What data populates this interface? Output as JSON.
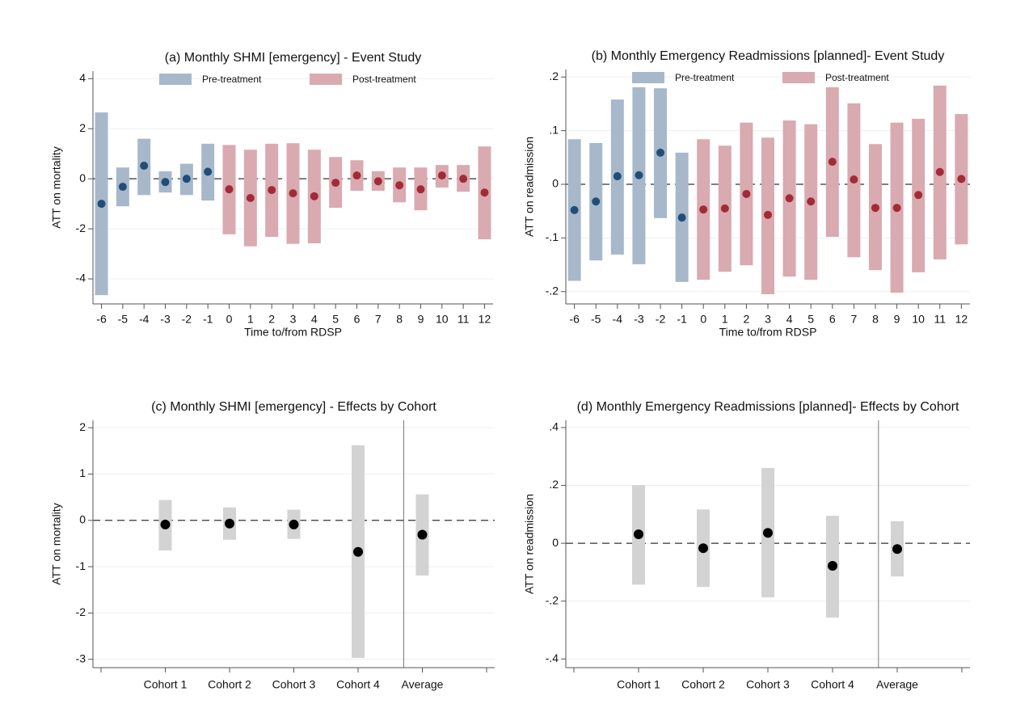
{
  "chart_data": [
    {
      "type": "errorbar",
      "title": "(a) Monthly SHMI [emergency] - Event Study",
      "xlabel": "Time to/from RDSP",
      "ylabel": "ATT on mortality",
      "xlim": [
        -6.4,
        12.4
      ],
      "xticks": [
        -6,
        -5,
        -4,
        -3,
        -2,
        -1,
        0,
        1,
        2,
        3,
        4,
        5,
        6,
        7,
        8,
        9,
        10,
        11,
        12
      ],
      "ylim": [
        -5,
        4.3
      ],
      "yticks": [
        -4,
        -2,
        0,
        2,
        4
      ],
      "grid": true,
      "reference_line": 0,
      "legend": "top",
      "series": [
        {
          "name": "Pre-treatment",
          "color": "#1f4e79",
          "band_color": "#a7b8ca",
          "x": [
            -6,
            -5,
            -4,
            -3,
            -2,
            -1
          ],
          "values": [
            -1.0,
            -0.32,
            0.52,
            -0.13,
            0,
            0.28
          ],
          "lower": [
            -4.65,
            -1.1,
            -0.65,
            -0.55,
            -0.65,
            -0.87
          ],
          "upper": [
            2.65,
            0.45,
            1.6,
            0.3,
            0.6,
            1.4
          ]
        },
        {
          "name": "Post-treatment",
          "color": "#a12b36",
          "band_color": "#d9aab0",
          "x": [
            0,
            1,
            2,
            3,
            4,
            5,
            6,
            7,
            8,
            9,
            10,
            11,
            12
          ],
          "values": [
            -0.42,
            -0.77,
            -0.45,
            -0.58,
            -0.7,
            -0.16,
            0.13,
            -0.1,
            -0.26,
            -0.42,
            0.13,
            0,
            -0.55
          ],
          "lower": [
            -2.22,
            -2.7,
            -2.32,
            -2.6,
            -2.58,
            -1.16,
            -0.48,
            -0.48,
            -0.94,
            -1.26,
            -0.35,
            -0.52,
            -2.42
          ],
          "upper": [
            1.35,
            1.16,
            1.4,
            1.42,
            1.16,
            0.87,
            0.74,
            0.3,
            0.45,
            0.45,
            0.55,
            0.55,
            1.29
          ]
        }
      ]
    },
    {
      "type": "errorbar",
      "title": "(b) Monthly Emergency Readmissions [planned]- Event Study",
      "xlabel": "Time to/from RDSP",
      "ylabel": "ATT on readmission",
      "xlim": [
        -6.4,
        12.4
      ],
      "xticks": [
        -6,
        -5,
        -4,
        -3,
        -2,
        -1,
        0,
        1,
        2,
        3,
        4,
        5,
        6,
        7,
        8,
        9,
        10,
        11,
        12
      ],
      "ylim": [
        -0.223,
        0.214
      ],
      "yticks": [
        {
          "value": -0.2,
          "label": "-.2"
        },
        {
          "value": -0.1,
          "label": "-.1"
        },
        0,
        {
          "value": 0.1,
          "label": ".1"
        },
        {
          "value": 0.2,
          "label": ".2"
        }
      ],
      "grid": true,
      "reference_line": 0,
      "legend": "top",
      "series": [
        {
          "name": "Pre-treatment",
          "color": "#1f4e79",
          "band_color": "#a7b8ca",
          "x": [
            -6,
            -5,
            -4,
            -3,
            -2,
            -1
          ],
          "values": [
            -0.048,
            -0.032,
            0.015,
            0.017,
            0.059,
            -0.062
          ],
          "lower": [
            -0.18,
            -0.142,
            -0.131,
            -0.149,
            -0.063,
            -0.182
          ],
          "upper": [
            0.084,
            0.077,
            0.158,
            0.181,
            0.179,
            0.059
          ]
        },
        {
          "name": "Post-treatment",
          "color": "#a12b36",
          "band_color": "#d9aab0",
          "x": [
            0,
            1,
            2,
            3,
            4,
            5,
            6,
            7,
            8,
            9,
            10,
            11,
            12
          ],
          "values": [
            -0.047,
            -0.045,
            -0.018,
            -0.057,
            -0.026,
            -0.032,
            0.042,
            0.009,
            -0.044,
            -0.044,
            -0.02,
            0.023,
            0.01
          ],
          "lower": [
            -0.178,
            -0.163,
            -0.151,
            -0.205,
            -0.172,
            -0.178,
            -0.098,
            -0.136,
            -0.16,
            -0.202,
            -0.164,
            -0.14,
            -0.112
          ],
          "upper": [
            0.084,
            0.072,
            0.115,
            0.087,
            0.119,
            0.112,
            0.181,
            0.151,
            0.075,
            0.115,
            0.122,
            0.184,
            0.131
          ]
        }
      ]
    },
    {
      "type": "errorbar",
      "title": "(c) Monthly SHMI [emergency] - Effects by Cohort",
      "ylabel": "ATT on mortality",
      "categories": [
        null,
        "Cohort 1",
        "Cohort 2",
        "Cohort 3",
        "Cohort 4",
        "Average",
        null
      ],
      "ylim": [
        -3.18,
        2.16
      ],
      "yticks": [
        -3,
        -2,
        -1,
        0,
        1,
        2
      ],
      "grid": true,
      "reference_line": 0,
      "series": [
        {
          "color": "#000000",
          "band_color": "#d3d3d3",
          "values": [
            null,
            -0.09,
            -0.07,
            -0.09,
            -0.68,
            -0.31,
            null
          ],
          "lower": [
            null,
            -0.65,
            -0.42,
            -0.4,
            -2.97,
            -1.19,
            null
          ],
          "upper": [
            null,
            0.44,
            0.28,
            0.23,
            1.62,
            0.56,
            null
          ]
        }
      ]
    },
    {
      "type": "errorbar",
      "title": "(d) Monthly Emergency Readmissions [planned]- Effects by Cohort",
      "ylabel": "ATT on readmission",
      "categories": [
        null,
        "Cohort 1",
        "Cohort 2",
        "Cohort 3",
        "Cohort 4",
        "Average",
        null
      ],
      "ylim": [
        -0.43,
        0.425
      ],
      "yticks": [
        {
          "value": -0.4,
          "label": "-.4"
        },
        {
          "value": -0.2,
          "label": "-.2"
        },
        0,
        {
          "value": 0.2,
          "label": ".2"
        },
        {
          "value": 0.4,
          "label": ".4"
        }
      ],
      "grid": true,
      "reference_line": 0,
      "series": [
        {
          "color": "#000000",
          "band_color": "#d3d3d3",
          "values": [
            null,
            0.031,
            -0.017,
            0.036,
            -0.078,
            -0.02,
            null
          ],
          "lower": [
            null,
            -0.143,
            -0.151,
            -0.187,
            -0.257,
            -0.115,
            null
          ],
          "upper": [
            null,
            0.201,
            0.117,
            0.26,
            0.095,
            0.076,
            null
          ]
        }
      ]
    }
  ]
}
